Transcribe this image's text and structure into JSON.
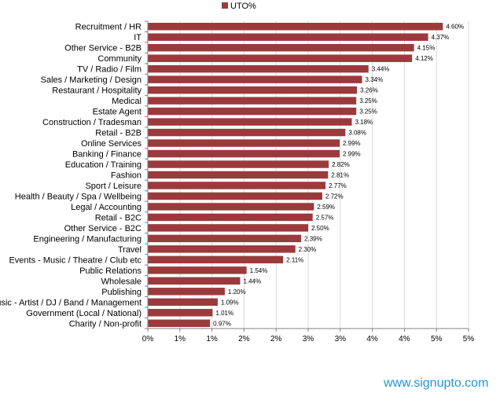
{
  "watermark": "www.signupto.com",
  "chart_data": {
    "type": "bar",
    "orientation": "horizontal",
    "series": [
      {
        "name": "UTO%",
        "color": "#9b3a3c",
        "values": [
          4.6,
          4.37,
          4.15,
          4.12,
          3.44,
          3.34,
          3.26,
          3.25,
          3.25,
          3.18,
          3.08,
          2.99,
          2.99,
          2.82,
          2.81,
          2.77,
          2.72,
          2.59,
          2.57,
          2.5,
          2.39,
          2.3,
          2.11,
          1.54,
          1.44,
          1.2,
          1.09,
          1.01,
          0.97
        ]
      }
    ],
    "categories": [
      "Recruitment / HR",
      "IT",
      "Other Service - B2B",
      "Community",
      "TV / Radio / Film",
      "Sales / Marketing / Design",
      "Restaurant / Hospitality",
      "Medical",
      "Estate Agent",
      "Construction / Tradesman",
      "Retail - B2B",
      "Online Services",
      "Banking / Finance",
      "Education / Training",
      "Fashion",
      "Sport / Leisure",
      "Health / Beauty / Spa / Wellbeing",
      "Legal / Accounting",
      "Retail - B2C",
      "Other Service - B2C",
      "Engineering / Manufacturing",
      "Travel",
      "Events - Music / Theatre / Club etc",
      "Public Relations",
      "Wholesale",
      "Publishing",
      "Music - Artist / DJ / Band / Management",
      "Government (Local / National)",
      "Charity / Non-profit"
    ],
    "data_labels": [
      "4.60%",
      "4.37%",
      "4.15%",
      "4.12%",
      "3.44%",
      "3.34%",
      "3.26%",
      "3.25%",
      "3.25%",
      "3.18%",
      "3.08%",
      "2.99%",
      "2.99%",
      "2.82%",
      "2.81%",
      "2.77%",
      "2.72%",
      "2.59%",
      "2.57%",
      "2.50%",
      "2.39%",
      "2.30%",
      "2.11%",
      "1.54%",
      "1.44%",
      "1.20%",
      "1.09%",
      "1.01%",
      "0.97%"
    ],
    "x_ticks": [
      0,
      0.5,
      1,
      1.5,
      2,
      2.5,
      3,
      3.5,
      4,
      4.5,
      5
    ],
    "x_tick_labels": [
      "0%",
      "1%",
      "1%",
      "2%",
      "2%",
      "3%",
      "3%",
      "4%",
      "4%",
      "5%",
      "5%"
    ],
    "xlim": [
      0,
      5
    ],
    "xlabel": "",
    "ylabel": "",
    "grid": "vertical",
    "legend": "top-center"
  }
}
